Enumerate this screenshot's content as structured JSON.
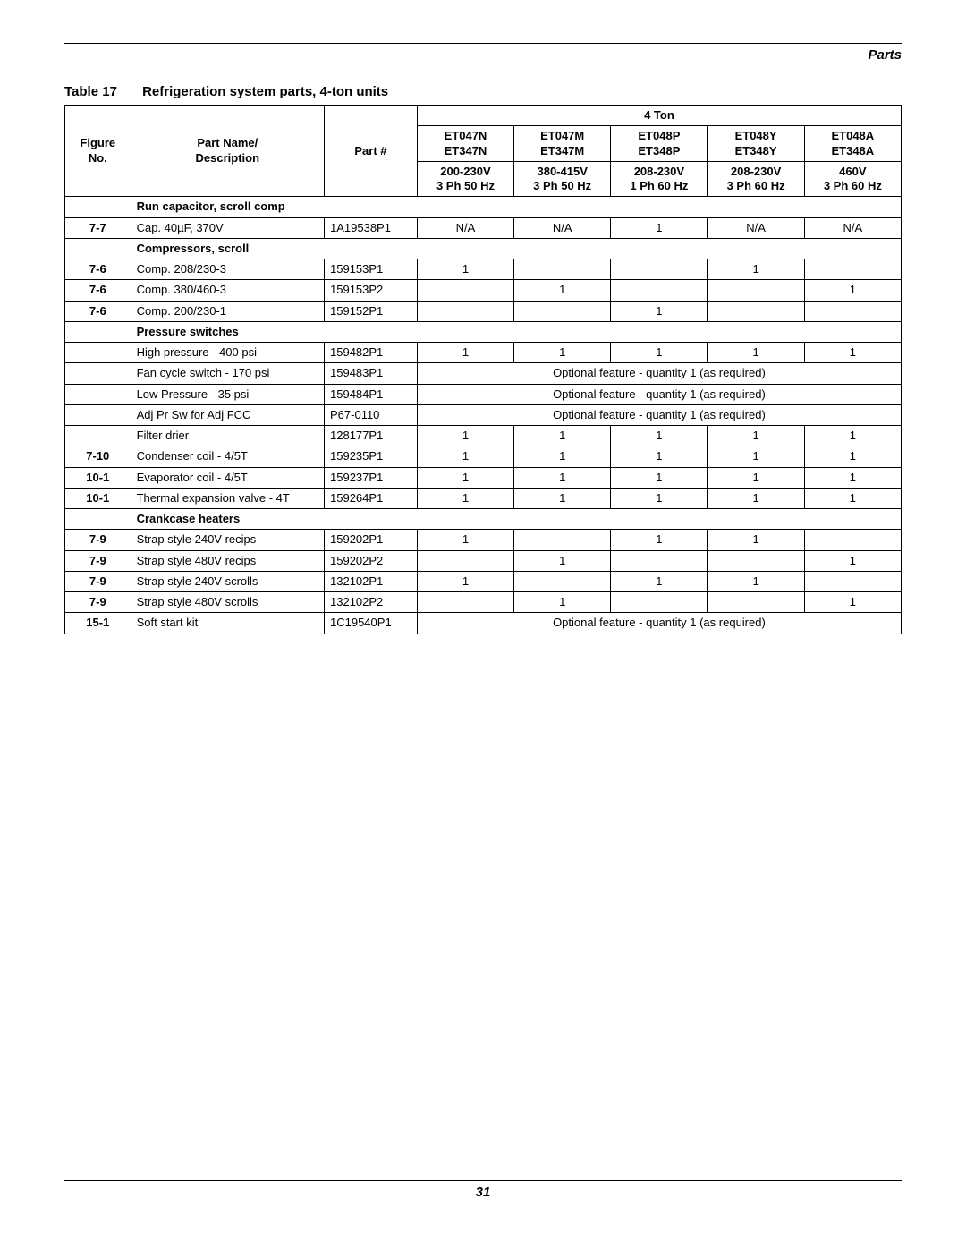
{
  "header": {
    "section": "Parts"
  },
  "footer": {
    "page": "31"
  },
  "table": {
    "number": "Table 17",
    "title": "Refrigeration system parts, 4-ton units",
    "super_header": "4 Ton",
    "model_headers": [
      {
        "line1": "ET047N",
        "line2": "ET347N"
      },
      {
        "line1": "ET047M",
        "line2": "ET347M"
      },
      {
        "line1": "ET048P",
        "line2": "ET348P"
      },
      {
        "line1": "ET048Y",
        "line2": "ET348Y"
      },
      {
        "line1": "ET048A",
        "line2": "ET348A"
      }
    ],
    "col_headers": {
      "figure": "Figure No.",
      "desc": "Part Name/ Description",
      "part": "Part #",
      "volts": [
        {
          "line1": "200-230V",
          "line2": "3 Ph 50 Hz"
        },
        {
          "line1": "380-415V",
          "line2": "3 Ph 50 Hz"
        },
        {
          "line1": "208-230V",
          "line2": "1 Ph 60 Hz"
        },
        {
          "line1": "208-230V",
          "line2": "3 Ph 60 Hz"
        },
        {
          "line1": "460V",
          "line2": "3 Ph 60 Hz"
        }
      ]
    },
    "optional_text": "Optional feature - quantity 1 (as required)",
    "sections": [
      {
        "title": "Run capacitor, scroll comp",
        "rows": [
          {
            "fig": "7-7",
            "desc": "Cap. 40µF, 370V",
            "part": "1A19538P1",
            "vals": [
              "N/A",
              "N/A",
              "1",
              "N/A",
              "N/A"
            ]
          }
        ]
      },
      {
        "title": "Compressors, scroll",
        "rows": [
          {
            "fig": "7-6",
            "desc": "Comp. 208/230-3",
            "part": "159153P1",
            "vals": [
              "1",
              "",
              "",
              "1",
              ""
            ]
          },
          {
            "fig": "7-6",
            "desc": "Comp. 380/460-3",
            "part": "159153P2",
            "vals": [
              "",
              "1",
              "",
              "",
              "1"
            ]
          },
          {
            "fig": "7-6",
            "desc": "Comp. 200/230-1",
            "part": "159152P1",
            "vals": [
              "",
              "",
              "1",
              "",
              ""
            ]
          }
        ]
      },
      {
        "title": "Pressure switches",
        "rows": [
          {
            "fig": "",
            "desc": "High pressure - 400 psi",
            "part": "159482P1",
            "vals": [
              "1",
              "1",
              "1",
              "1",
              "1"
            ]
          },
          {
            "fig": "",
            "desc": "Fan cycle switch - 170 psi",
            "part": "159483P1",
            "optional": true
          },
          {
            "fig": "",
            "desc": "Low Pressure - 35 psi",
            "part": "159484P1",
            "optional": true
          },
          {
            "fig": "",
            "desc": "Adj Pr Sw for Adj FCC",
            "part": "P67-0110",
            "optional": true
          },
          {
            "fig": "",
            "desc": "Filter drier",
            "part": "128177P1",
            "vals": [
              "1",
              "1",
              "1",
              "1",
              "1"
            ]
          },
          {
            "fig": "7-10",
            "desc": "Condenser coil - 4/5T",
            "part": "159235P1",
            "vals": [
              "1",
              "1",
              "1",
              "1",
              "1"
            ]
          },
          {
            "fig": "10-1",
            "desc": "Evaporator coil - 4/5T",
            "part": "159237P1",
            "vals": [
              "1",
              "1",
              "1",
              "1",
              "1"
            ]
          },
          {
            "fig": "10-1",
            "desc": "Thermal expansion valve - 4T",
            "part": "159264P1",
            "vals": [
              "1",
              "1",
              "1",
              "1",
              "1"
            ]
          }
        ]
      },
      {
        "title": "Crankcase heaters",
        "rows": [
          {
            "fig": "7-9",
            "desc": "Strap style 240V recips",
            "part": "159202P1",
            "vals": [
              "1",
              "",
              "1",
              "1",
              ""
            ]
          },
          {
            "fig": "7-9",
            "desc": "Strap style 480V recips",
            "part": "159202P2",
            "vals": [
              "",
              "1",
              "",
              "",
              "1"
            ]
          },
          {
            "fig": "7-9",
            "desc": "Strap style 240V scrolls",
            "part": "132102P1",
            "vals": [
              "1",
              "",
              "1",
              "1",
              ""
            ]
          },
          {
            "fig": "7-9",
            "desc": "Strap style 480V scrolls",
            "part": "132102P2",
            "vals": [
              "",
              "1",
              "",
              "",
              "1"
            ]
          },
          {
            "fig": "15-1",
            "desc": "Soft start kit",
            "part": "1C19540P1",
            "optional": true
          }
        ]
      }
    ]
  }
}
